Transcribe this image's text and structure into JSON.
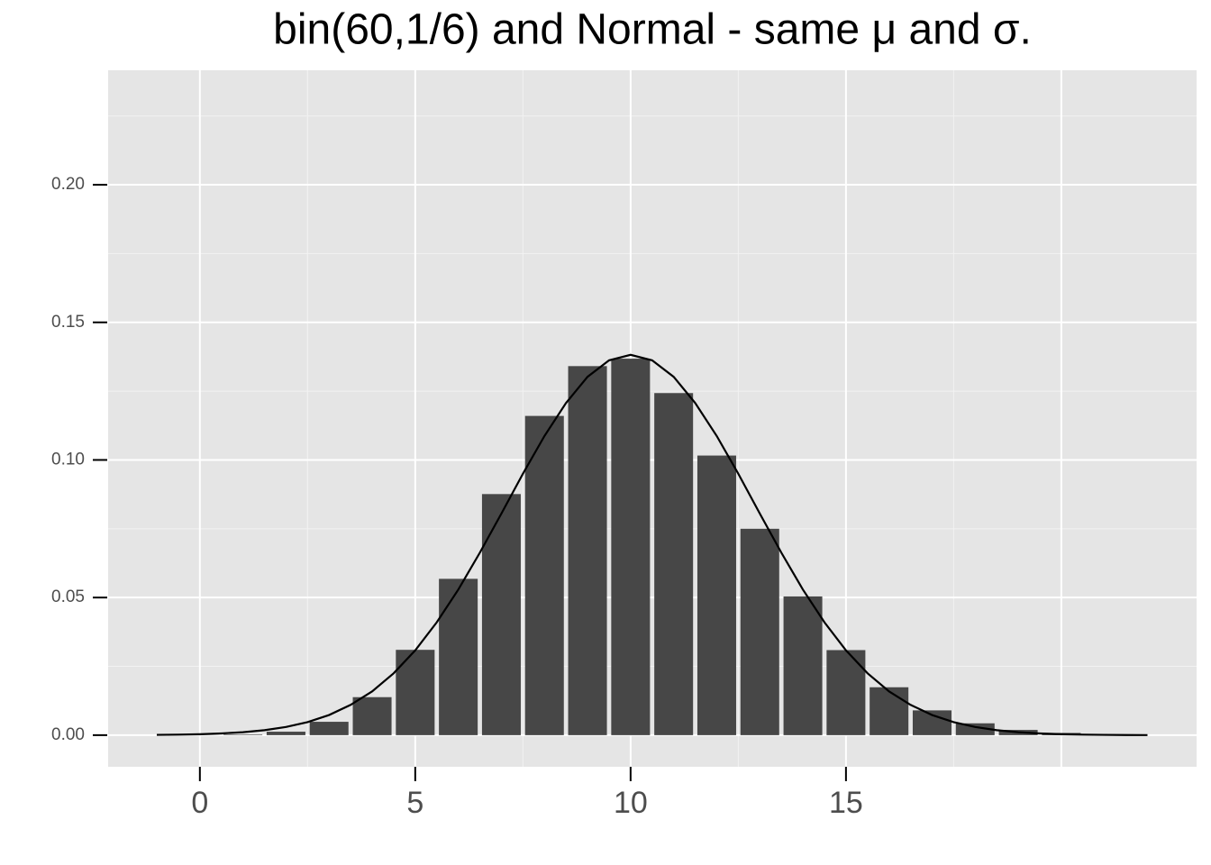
{
  "chart_data": {
    "type": "bar",
    "title": "bin(60,1/6) and Normal - same μ and σ.",
    "x": [
      0,
      1,
      2,
      3,
      4,
      5,
      6,
      7,
      8,
      9,
      10,
      11,
      12,
      13,
      14,
      15,
      16,
      17,
      18,
      19,
      20
    ],
    "values": [
      1.77e-05,
      0.00021,
      0.00125,
      0.00485,
      0.0138,
      0.031,
      0.0568,
      0.0876,
      0.116,
      0.1341,
      0.1368,
      0.1243,
      0.1016,
      0.075,
      0.0504,
      0.0309,
      0.0174,
      0.009,
      0.0043,
      0.0019,
      0.0008
    ],
    "color": "#474747",
    "bar_width": 0.9,
    "overlay": {
      "type": "line",
      "color": "#000000",
      "x": [
        -1,
        -0.5,
        0,
        0.5,
        1,
        1.5,
        2,
        2.5,
        3,
        3.5,
        4,
        4.5,
        5,
        5.5,
        6,
        6.5,
        7,
        7.5,
        8,
        8.5,
        9,
        9.5,
        10,
        10.5,
        11,
        11.5,
        12,
        12.5,
        13,
        13.5,
        14,
        14.5,
        15,
        15.5,
        16,
        16.5,
        17,
        17.5,
        18,
        18.5,
        19,
        19.5,
        20,
        20.5,
        21,
        21.5,
        22
      ],
      "values": [
        0.0001,
        0.00019,
        0.00034,
        0.00062,
        0.00107,
        0.00181,
        0.00297,
        0.00473,
        0.00731,
        0.011,
        0.0159,
        0.0225,
        0.0308,
        0.041,
        0.0529,
        0.0663,
        0.0805,
        0.095,
        0.1087,
        0.1207,
        0.1302,
        0.1362,
        0.1382,
        0.1362,
        0.1302,
        0.1207,
        0.1087,
        0.095,
        0.0805,
        0.0663,
        0.0529,
        0.041,
        0.0308,
        0.0225,
        0.0159,
        0.011,
        0.00731,
        0.00473,
        0.00297,
        0.00181,
        0.00107,
        0.00062,
        0.00034,
        0.00019,
        0.0001,
        5e-05,
        2e-05
      ]
    },
    "xlim": [
      -2.13,
      23.14
    ],
    "ylim": [
      -0.0115,
      0.2416
    ],
    "xticks": [
      0,
      5,
      10,
      15
    ],
    "xgrid": [
      0,
      5,
      10,
      15,
      20
    ],
    "xgrid_minor": [
      2.5,
      7.5,
      12.5,
      17.5
    ],
    "yticks": [
      {
        "value": 0,
        "label": "0.00"
      },
      {
        "value": 0.05,
        "label": "0.05"
      },
      {
        "value": 0.1,
        "label": "0.10"
      },
      {
        "value": 0.15,
        "label": "0.15"
      },
      {
        "value": 0.2,
        "label": "0.20"
      }
    ],
    "ygrid_minor": [
      0.025,
      0.075,
      0.125,
      0.175,
      0.225
    ],
    "grid": true
  }
}
